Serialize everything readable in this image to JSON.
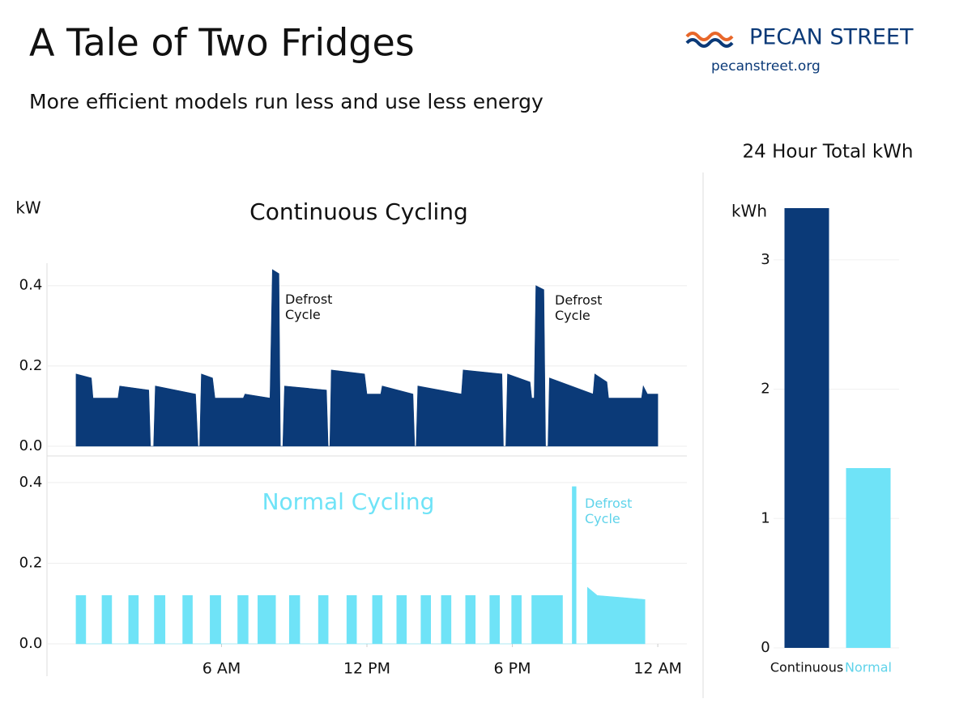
{
  "header": {
    "title": "A Tale of Two Fridges",
    "subtitle": "More efficient models run less and use less energy"
  },
  "logo": {
    "name": "PECAN STREET",
    "url": "pecanstreet.org"
  },
  "chart_data": [
    {
      "type": "area",
      "title": "Continuous Cycling",
      "ylabel": "kW",
      "color": "#0b3a78",
      "annotations": [
        "Defrost Cycle",
        "Defrost Cycle"
      ],
      "xlim": [
        -1.2,
        25.2
      ],
      "ylim": [
        0,
        0.46
      ],
      "yticks": [
        {
          "value": 0,
          "label": "0.0"
        },
        0.2,
        0.4
      ],
      "grid": true,
      "x": [
        0,
        0.63,
        0.7,
        1.73,
        1.8,
        3.0,
        3.07,
        3.2,
        3.27,
        4.93,
        5.03,
        5.1,
        5.17,
        5.63,
        5.73,
        6.9,
        6.97,
        8.0,
        8.1,
        8.37,
        8.43,
        8.53,
        8.6,
        10.33,
        10.4,
        10.47,
        10.53,
        11.9,
        12.0,
        12.57,
        12.63,
        13.9,
        13.97,
        14.03,
        14.1,
        15.9,
        15.97,
        17.57,
        17.63,
        17.73,
        17.8,
        18.73,
        18.8,
        18.9,
        18.97,
        19.3,
        19.37,
        19.47,
        19.53,
        21.33,
        21.4,
        21.9,
        21.97,
        23.33,
        23.4,
        23.57,
        24.0
      ],
      "values": [
        0.18,
        0.17,
        0.12,
        0.12,
        0.15,
        0.14,
        0,
        0,
        0.15,
        0.13,
        0,
        0,
        0.18,
        0.17,
        0.12,
        0.12,
        0.13,
        0.12,
        0.44,
        0.43,
        0,
        0,
        0.15,
        0.14,
        0,
        0,
        0.19,
        0.18,
        0.13,
        0.13,
        0.15,
        0.13,
        0,
        0,
        0.15,
        0.13,
        0.19,
        0.18,
        0,
        0,
        0.18,
        0.16,
        0.12,
        0.12,
        0.4,
        0.39,
        0,
        0,
        0.17,
        0.13,
        0.18,
        0.16,
        0.12,
        0.12,
        0.15,
        0.13,
        0.13
      ]
    },
    {
      "type": "area",
      "title": "Normal Cycling",
      "color": "#6fe3f7",
      "annotations": [
        "Defrost Cycle"
      ],
      "xlim": [
        -1.2,
        25.2
      ],
      "ylim": [
        0,
        0.45
      ],
      "xticks": [
        {
          "value": 6,
          "label": "6 AM"
        },
        {
          "value": 12,
          "label": "12 PM"
        },
        {
          "value": 18,
          "label": "6 PM"
        },
        {
          "value": 24,
          "label": "12 AM"
        }
      ],
      "yticks": [
        {
          "value": 0,
          "label": "0.0"
        },
        0.2,
        0.4
      ],
      "grid": true,
      "x": [
        0,
        0,
        0.4,
        0.4,
        1.07,
        1.07,
        1.47,
        1.47,
        2.17,
        2.17,
        2.57,
        2.57,
        3.23,
        3.23,
        3.67,
        3.67,
        4.4,
        4.4,
        4.8,
        4.8,
        5.53,
        5.53,
        5.97,
        5.97,
        6.67,
        6.67,
        7.1,
        7.1,
        7.5,
        7.5,
        8.23,
        8.23,
        8.8,
        8.8,
        9.23,
        9.23,
        10.0,
        10.0,
        10.4,
        10.4,
        11.17,
        11.17,
        11.57,
        11.57,
        12.23,
        12.23,
        12.63,
        12.63,
        13.23,
        13.23,
        13.63,
        13.63,
        14.23,
        14.23,
        14.63,
        14.63,
        15.07,
        15.07,
        15.47,
        15.47,
        16.07,
        16.07,
        16.47,
        16.47,
        17.07,
        17.07,
        17.47,
        17.47,
        17.97,
        17.97,
        18.37,
        18.37,
        18.8,
        18.8,
        20.07,
        20.07,
        20.47,
        20.47,
        20.63,
        20.63,
        21.1,
        21.1,
        21.5,
        23.47,
        23.47
      ],
      "values": [
        0,
        0.12,
        0.12,
        0,
        0,
        0.12,
        0.12,
        0,
        0,
        0.12,
        0.12,
        0,
        0,
        0.12,
        0.12,
        0,
        0,
        0.12,
        0.12,
        0,
        0,
        0.12,
        0.12,
        0,
        0,
        0.12,
        0.12,
        0,
        0,
        0.12,
        0.12,
        0,
        0,
        0.12,
        0.12,
        0,
        0,
        0.12,
        0.12,
        0,
        0,
        0.12,
        0.12,
        0,
        0,
        0.12,
        0.12,
        0,
        0,
        0.12,
        0.12,
        0,
        0,
        0.12,
        0.12,
        0,
        0,
        0.12,
        0.12,
        0,
        0,
        0.12,
        0.12,
        0,
        0,
        0.12,
        0.12,
        0,
        0,
        0.12,
        0.12,
        0,
        0,
        0.12,
        0.12,
        0,
        0,
        0.39,
        0.39,
        0,
        0,
        0.14,
        0.12,
        0.11,
        0
      ]
    },
    {
      "type": "bar",
      "title": "24 Hour Total kWh",
      "ylabel": "kWh",
      "categories": [
        "Continuous",
        "Normal"
      ],
      "values": [
        3.4,
        1.39
      ],
      "colors": [
        "#0b3a78",
        "#6fe3f7"
      ],
      "label_colors": [
        "#111111",
        "#5fd3ea"
      ],
      "ylim": [
        0,
        3.45
      ],
      "yticks": [
        0,
        1,
        2,
        3
      ],
      "grid": true
    }
  ]
}
